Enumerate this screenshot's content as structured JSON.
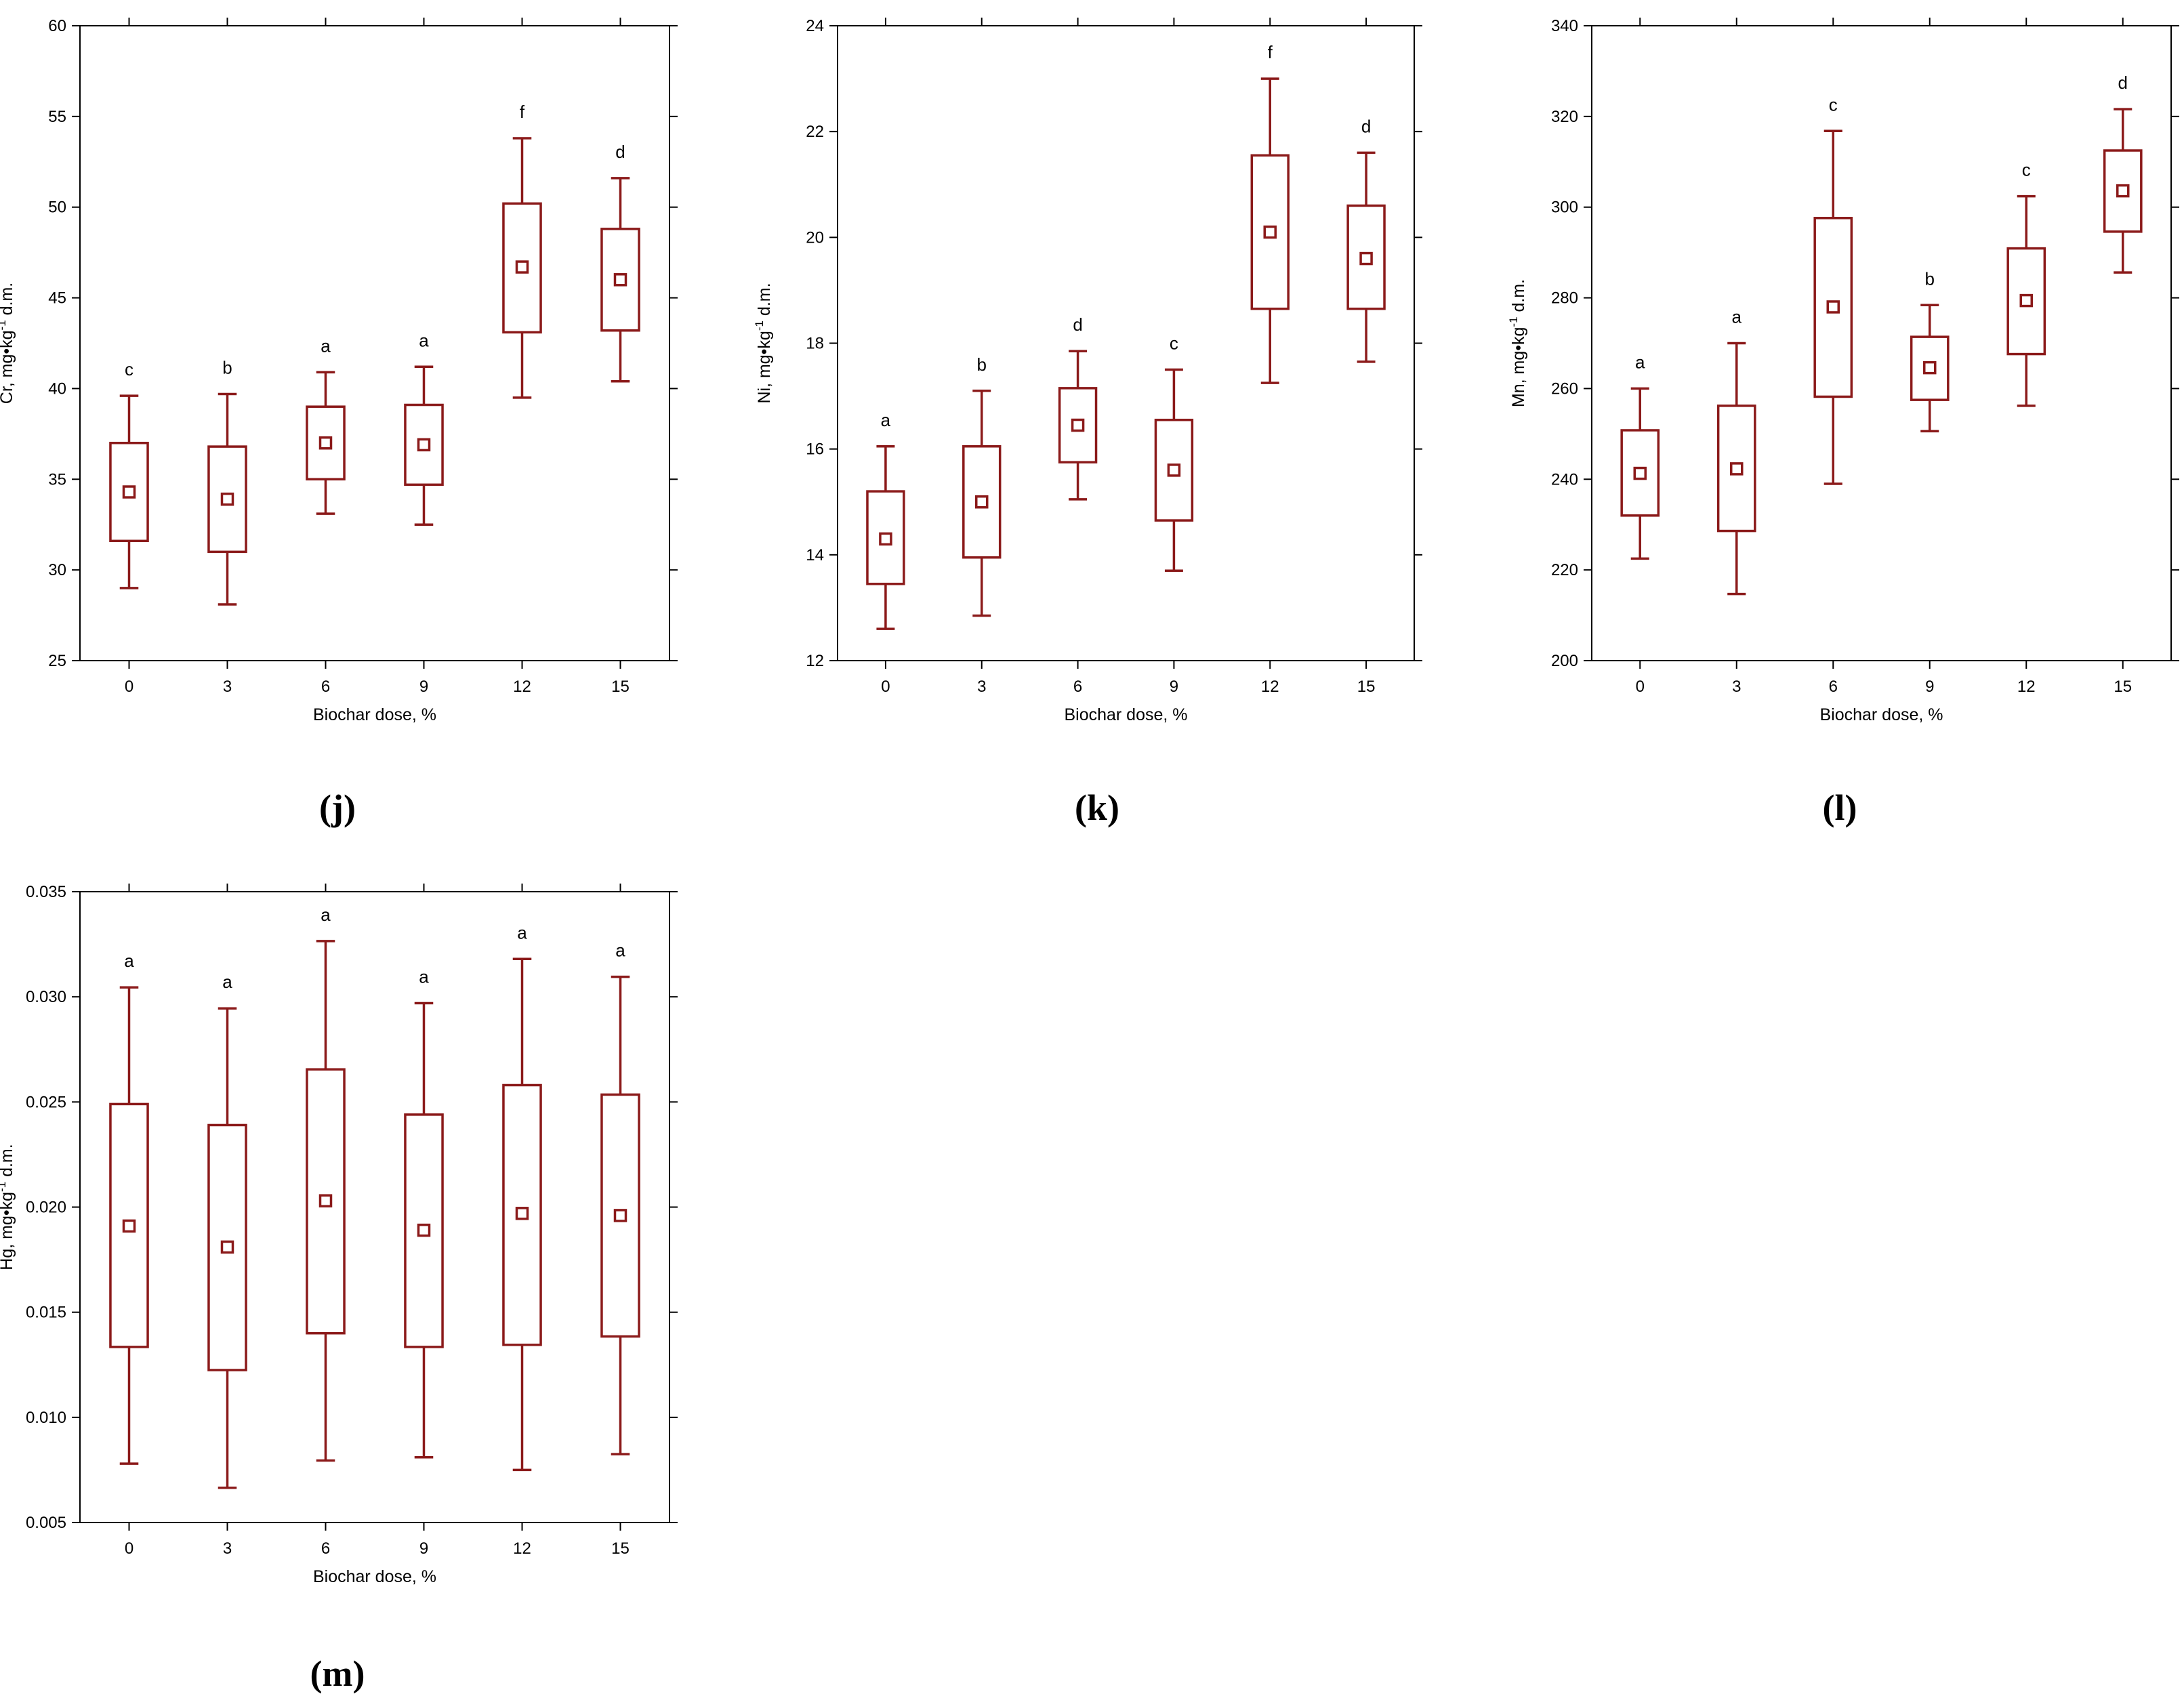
{
  "chart_data": [
    {
      "type": "box",
      "panel_label": "(j)",
      "xlabel": "Biochar dose, %",
      "ylabel": "Cr, mg•kg⁻¹ d.m.",
      "categories": [
        "0",
        "3",
        "6",
        "9",
        "12",
        "15"
      ],
      "ylim": [
        25,
        60
      ],
      "yticks": [
        "25",
        "30",
        "35",
        "40",
        "45",
        "50",
        "55",
        "60"
      ],
      "boxes": [
        {
          "mean": 34.3,
          "q1": 31.6,
          "q3": 37.0,
          "min": 29.0,
          "max": 39.6,
          "letter": "c"
        },
        {
          "mean": 33.9,
          "q1": 31.0,
          "q3": 36.8,
          "min": 28.1,
          "max": 39.7,
          "letter": "b"
        },
        {
          "mean": 37.0,
          "q1": 35.0,
          "q3": 39.0,
          "min": 33.1,
          "max": 40.9,
          "letter": "a"
        },
        {
          "mean": 36.9,
          "q1": 34.7,
          "q3": 39.1,
          "min": 32.5,
          "max": 41.2,
          "letter": "a"
        },
        {
          "mean": 46.7,
          "q1": 43.1,
          "q3": 50.2,
          "min": 39.5,
          "max": 53.8,
          "letter": "f"
        },
        {
          "mean": 46.0,
          "q1": 43.2,
          "q3": 48.8,
          "min": 40.4,
          "max": 51.6,
          "letter": "d"
        }
      ]
    },
    {
      "type": "box",
      "panel_label": "(k)",
      "xlabel": "Biochar dose, %",
      "ylabel": "Ni, mg•kg⁻¹ d.m.",
      "categories": [
        "0",
        "3",
        "6",
        "9",
        "12",
        "15"
      ],
      "ylim": [
        12,
        24
      ],
      "yticks": [
        "12",
        "14",
        "16",
        "18",
        "20",
        "22",
        "24"
      ],
      "boxes": [
        {
          "mean": 14.3,
          "q1": 13.45,
          "q3": 15.2,
          "min": 12.6,
          "max": 16.05,
          "letter": "a"
        },
        {
          "mean": 15.0,
          "q1": 13.95,
          "q3": 16.05,
          "min": 12.85,
          "max": 17.1,
          "letter": "b"
        },
        {
          "mean": 16.45,
          "q1": 15.75,
          "q3": 17.15,
          "min": 15.05,
          "max": 17.85,
          "letter": "d"
        },
        {
          "mean": 15.6,
          "q1": 14.65,
          "q3": 16.55,
          "min": 13.7,
          "max": 17.5,
          "letter": "c"
        },
        {
          "mean": 20.1,
          "q1": 18.65,
          "q3": 21.55,
          "min": 17.25,
          "max": 23.0,
          "letter": "f"
        },
        {
          "mean": 19.6,
          "q1": 18.65,
          "q3": 20.6,
          "min": 17.65,
          "max": 21.6,
          "letter": "d"
        }
      ]
    },
    {
      "type": "box",
      "panel_label": "(l)",
      "xlabel": "Biochar dose, %",
      "ylabel": "Mn, mg•kg⁻¹ d.m.",
      "categories": [
        "0",
        "3",
        "6",
        "9",
        "12",
        "15"
      ],
      "ylim": [
        200,
        340
      ],
      "yticks": [
        "200",
        "220",
        "240",
        "260",
        "280",
        "300",
        "320",
        "340"
      ],
      "boxes": [
        {
          "mean": 241.3,
          "q1": 232.0,
          "q3": 250.8,
          "min": 222.5,
          "max": 260.0,
          "letter": "a"
        },
        {
          "mean": 242.3,
          "q1": 228.6,
          "q3": 256.2,
          "min": 214.7,
          "max": 270.0,
          "letter": "a"
        },
        {
          "mean": 278.0,
          "q1": 258.2,
          "q3": 297.6,
          "min": 239.0,
          "max": 316.8,
          "letter": "c"
        },
        {
          "mean": 264.6,
          "q1": 257.5,
          "q3": 271.4,
          "min": 250.6,
          "max": 278.4,
          "letter": "b"
        },
        {
          "mean": 279.4,
          "q1": 267.6,
          "q3": 290.9,
          "min": 256.2,
          "max": 302.4,
          "letter": "c"
        },
        {
          "mean": 303.6,
          "q1": 294.6,
          "q3": 312.5,
          "min": 285.6,
          "max": 321.6,
          "letter": "d"
        }
      ]
    },
    {
      "type": "box",
      "panel_label": "(m)",
      "xlabel": "Biochar dose, %",
      "ylabel": "Hg, mg•kg⁻¹ d.m.",
      "categories": [
        "0",
        "3",
        "6",
        "9",
        "12",
        "15"
      ],
      "ylim": [
        0.005,
        0.035
      ],
      "yticks": [
        "0.005",
        "0.010",
        "0.015",
        "0.020",
        "0.025",
        "0.030",
        "0.035"
      ],
      "boxes": [
        {
          "mean": 0.0191,
          "q1": 0.01335,
          "q3": 0.0249,
          "min": 0.0078,
          "max": 0.03045,
          "letter": "a"
        },
        {
          "mean": 0.0181,
          "q1": 0.01225,
          "q3": 0.0239,
          "min": 0.00665,
          "max": 0.02945,
          "letter": "a"
        },
        {
          "mean": 0.0203,
          "q1": 0.014,
          "q3": 0.02655,
          "min": 0.00795,
          "max": 0.03265,
          "letter": "a"
        },
        {
          "mean": 0.0189,
          "q1": 0.01335,
          "q3": 0.0244,
          "min": 0.0081,
          "max": 0.0297,
          "letter": "a"
        },
        {
          "mean": 0.0197,
          "q1": 0.01345,
          "q3": 0.0258,
          "min": 0.0075,
          "max": 0.0318,
          "letter": "a"
        },
        {
          "mean": 0.0196,
          "q1": 0.01385,
          "q3": 0.02535,
          "min": 0.00825,
          "max": 0.03095,
          "letter": "a"
        }
      ]
    }
  ]
}
